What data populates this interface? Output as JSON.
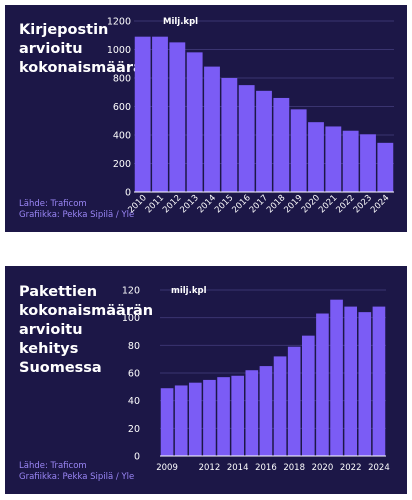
{
  "chart_data": [
    {
      "type": "bar",
      "title": "Kirjepostin\narvioitu\nkokonaismäärä",
      "unit_label": "Milj.kpl",
      "source_line1": "Lähde: Traficom",
      "source_line2": "Grafiikka: Pekka Sipilä / Yle",
      "categories": [
        "2010",
        "2011",
        "2012",
        "2013",
        "2014",
        "2015",
        "2016",
        "2017",
        "2018",
        "2019",
        "2020",
        "2021",
        "2022",
        "2023",
        "2024"
      ],
      "values": [
        1090,
        1090,
        1050,
        980,
        880,
        800,
        750,
        710,
        660,
        580,
        490,
        460,
        430,
        405,
        345
      ],
      "ylim": [
        0,
        1200
      ],
      "yticks": [
        0,
        200,
        400,
        600,
        800,
        1000,
        1200
      ],
      "xlabel_rotation": "45deg",
      "bar_color": "#7b5cf5",
      "background": "#1c1747",
      "grid": true
    },
    {
      "type": "bar",
      "title": "Pakettien\nkokonaismäärän\narvioitu kehitys\nSuomessa",
      "unit_label": "milj.kpl",
      "source_line1": "Lähde: Traficom",
      "source_line2": "Grafiikka: Pekka Sipilä / Yle",
      "categories": [
        "2009",
        "2010",
        "2011",
        "2012",
        "2013",
        "2014",
        "2015",
        "2016",
        "2017",
        "2018",
        "2019",
        "2020",
        "2021",
        "2022",
        "2023",
        "2024"
      ],
      "category_labels": [
        "2009",
        "",
        "",
        "2012",
        "",
        "2014",
        "",
        "2016",
        "",
        "2018",
        "",
        "2020",
        "",
        "2022",
        "",
        "2024"
      ],
      "values": [
        49,
        51,
        53,
        55,
        57,
        58,
        62,
        65,
        72,
        79,
        87,
        103,
        113,
        108,
        104,
        108
      ],
      "ylim": [
        0,
        120
      ],
      "yticks": [
        0,
        20,
        40,
        60,
        80,
        100,
        120
      ],
      "bar_color": "#7b5cf5",
      "background": "#1c1747",
      "grid": true
    }
  ]
}
